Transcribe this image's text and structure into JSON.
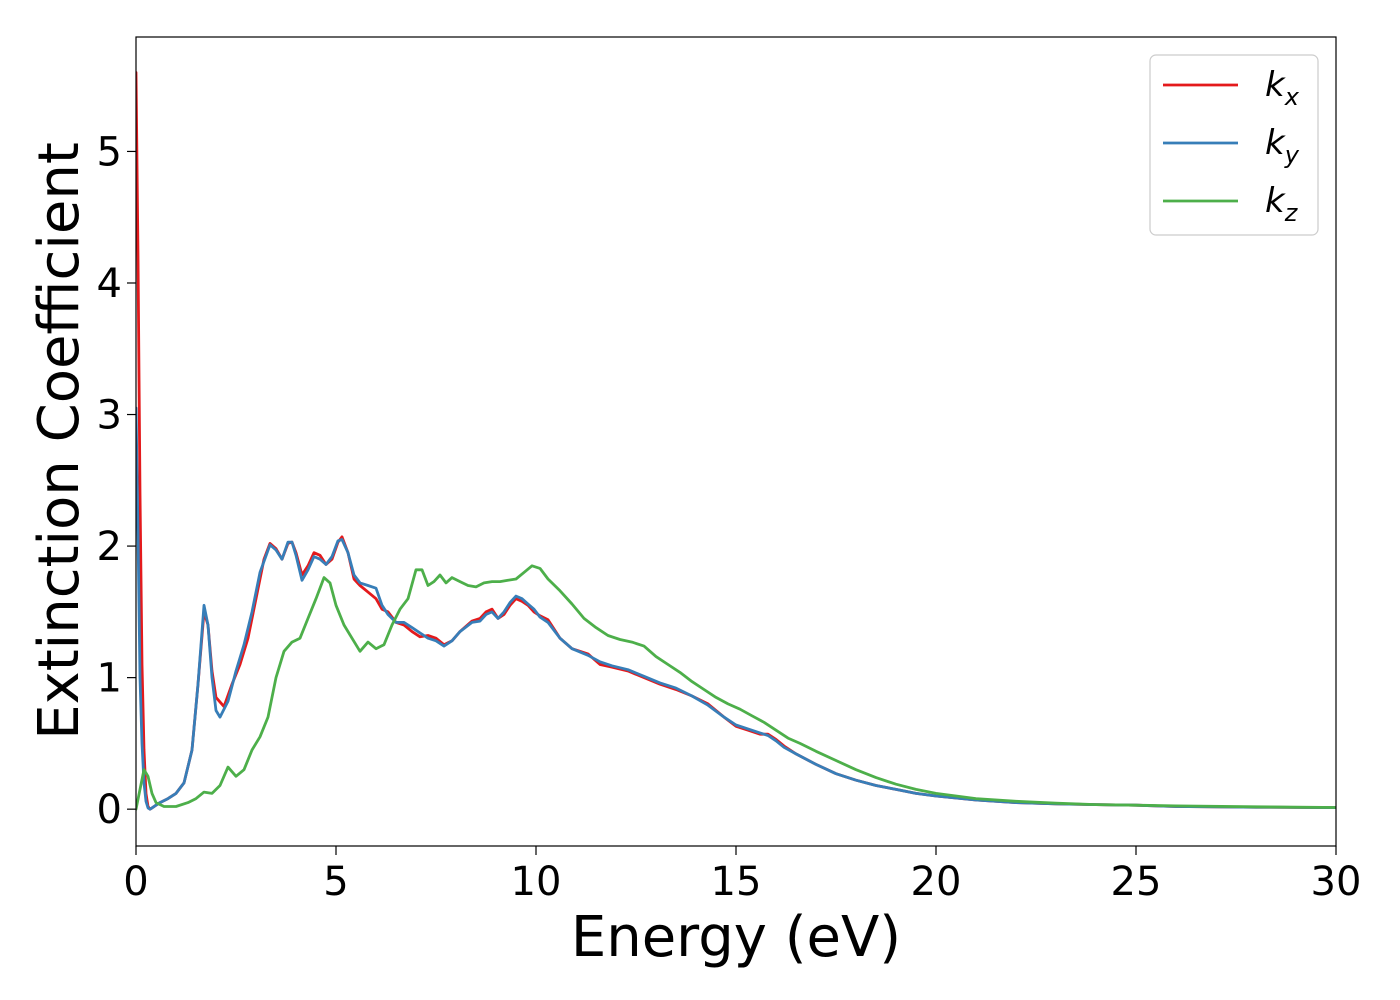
{
  "chart_data": {
    "type": "line",
    "title": "",
    "xlabel": "Energy (eV)",
    "ylabel": "Extinction Coefficient",
    "xlim": [
      0,
      30
    ],
    "ylim": [
      -0.28,
      5.87
    ],
    "xticks": [
      0,
      5,
      10,
      15,
      20,
      25,
      30
    ],
    "yticks": [
      0,
      1,
      2,
      3,
      4,
      5
    ],
    "grid": false,
    "legend_position": "top-right",
    "series": [
      {
        "name": "k_x",
        "legend_main": "k",
        "legend_sub": "x",
        "color": "#e41a1c",
        "x": [
          0.0,
          0.05,
          0.1,
          0.15,
          0.2,
          0.25,
          0.3,
          0.35,
          0.4,
          0.5,
          0.6,
          0.8,
          1.0,
          1.2,
          1.4,
          1.55,
          1.7,
          1.8,
          1.9,
          2.0,
          2.2,
          2.4,
          2.6,
          2.8,
          3.0,
          3.2,
          3.35,
          3.5,
          3.65,
          3.8,
          3.9,
          4.0,
          4.15,
          4.3,
          4.45,
          4.6,
          4.75,
          4.9,
          5.05,
          5.15,
          5.3,
          5.45,
          5.6,
          5.8,
          6.0,
          6.15,
          6.3,
          6.5,
          6.7,
          6.9,
          7.1,
          7.3,
          7.5,
          7.7,
          7.9,
          8.1,
          8.4,
          8.6,
          8.75,
          8.9,
          9.05,
          9.2,
          9.35,
          9.5,
          9.65,
          9.8,
          9.95,
          10.1,
          10.3,
          10.6,
          10.9,
          11.3,
          11.6,
          11.9,
          12.3,
          12.7,
          13.1,
          13.5,
          13.9,
          14.3,
          14.7,
          15.0,
          15.3,
          15.6,
          15.8,
          16.0,
          16.2,
          16.5,
          17.0,
          17.5,
          18.0,
          18.5,
          19.0,
          19.5,
          20.0,
          21.0,
          22.0,
          23.0,
          24.0,
          25.0,
          26.0,
          28.0,
          30.0
        ],
        "y": [
          5.6,
          4.2,
          2.4,
          1.1,
          0.45,
          0.12,
          0.02,
          0.0,
          0.01,
          0.03,
          0.05,
          0.08,
          0.12,
          0.2,
          0.45,
          0.95,
          1.5,
          1.4,
          1.05,
          0.85,
          0.78,
          0.95,
          1.1,
          1.3,
          1.6,
          1.9,
          2.02,
          1.98,
          1.9,
          2.02,
          2.03,
          1.95,
          1.78,
          1.85,
          1.95,
          1.93,
          1.86,
          1.9,
          2.03,
          2.07,
          1.95,
          1.75,
          1.7,
          1.65,
          1.6,
          1.52,
          1.5,
          1.42,
          1.4,
          1.35,
          1.31,
          1.32,
          1.3,
          1.25,
          1.28,
          1.35,
          1.43,
          1.45,
          1.5,
          1.52,
          1.45,
          1.48,
          1.55,
          1.6,
          1.58,
          1.55,
          1.5,
          1.47,
          1.44,
          1.3,
          1.22,
          1.18,
          1.1,
          1.08,
          1.05,
          1.0,
          0.95,
          0.91,
          0.86,
          0.8,
          0.7,
          0.63,
          0.6,
          0.57,
          0.57,
          0.53,
          0.48,
          0.42,
          0.34,
          0.27,
          0.22,
          0.18,
          0.15,
          0.12,
          0.1,
          0.07,
          0.05,
          0.04,
          0.035,
          0.03,
          0.02,
          0.015,
          0.012
        ]
      },
      {
        "name": "k_y",
        "legend_main": "k",
        "legend_sub": "y",
        "color": "#377eb8",
        "x": [
          0.0,
          0.05,
          0.1,
          0.15,
          0.2,
          0.25,
          0.3,
          0.35,
          0.4,
          0.5,
          0.6,
          0.8,
          1.0,
          1.2,
          1.4,
          1.55,
          1.7,
          1.8,
          1.9,
          2.0,
          2.1,
          2.3,
          2.5,
          2.7,
          2.9,
          3.1,
          3.35,
          3.5,
          3.65,
          3.8,
          3.9,
          4.0,
          4.15,
          4.3,
          4.45,
          4.6,
          4.75,
          4.9,
          5.05,
          5.15,
          5.3,
          5.45,
          5.6,
          5.8,
          6.0,
          6.15,
          6.3,
          6.5,
          6.7,
          6.9,
          7.1,
          7.3,
          7.5,
          7.7,
          7.9,
          8.1,
          8.4,
          8.6,
          8.75,
          8.9,
          9.05,
          9.2,
          9.35,
          9.5,
          9.65,
          9.8,
          9.95,
          10.1,
          10.3,
          10.6,
          10.9,
          11.3,
          11.6,
          11.9,
          12.3,
          12.7,
          13.1,
          13.5,
          13.9,
          14.3,
          14.7,
          15.0,
          15.3,
          15.6,
          15.8,
          16.0,
          16.2,
          16.5,
          17.0,
          17.5,
          18.0,
          18.5,
          19.0,
          19.5,
          20.0,
          21.0,
          22.0,
          23.0,
          24.0,
          25.0,
          26.0,
          28.0,
          30.0
        ],
        "y": [
          3.05,
          2.1,
          1.0,
          0.5,
          0.2,
          0.06,
          0.01,
          0.0,
          0.01,
          0.03,
          0.05,
          0.08,
          0.12,
          0.2,
          0.45,
          0.95,
          1.55,
          1.4,
          1.0,
          0.75,
          0.7,
          0.82,
          1.05,
          1.25,
          1.5,
          1.8,
          2.01,
          1.97,
          1.9,
          2.03,
          2.03,
          1.93,
          1.74,
          1.82,
          1.92,
          1.9,
          1.86,
          1.92,
          2.04,
          2.05,
          1.95,
          1.78,
          1.72,
          1.7,
          1.68,
          1.55,
          1.48,
          1.42,
          1.42,
          1.38,
          1.34,
          1.3,
          1.28,
          1.24,
          1.28,
          1.35,
          1.42,
          1.43,
          1.48,
          1.5,
          1.45,
          1.5,
          1.57,
          1.62,
          1.6,
          1.56,
          1.52,
          1.46,
          1.42,
          1.3,
          1.22,
          1.17,
          1.12,
          1.09,
          1.06,
          1.01,
          0.96,
          0.92,
          0.86,
          0.79,
          0.7,
          0.64,
          0.61,
          0.58,
          0.56,
          0.52,
          0.47,
          0.42,
          0.34,
          0.27,
          0.22,
          0.18,
          0.15,
          0.12,
          0.1,
          0.07,
          0.05,
          0.04,
          0.035,
          0.03,
          0.02,
          0.015,
          0.012
        ]
      },
      {
        "name": "k_z",
        "legend_main": "k",
        "legend_sub": "z",
        "color": "#4daf4a",
        "x": [
          0.0,
          0.1,
          0.2,
          0.3,
          0.4,
          0.5,
          0.7,
          1.0,
          1.3,
          1.5,
          1.7,
          1.9,
          2.1,
          2.3,
          2.5,
          2.7,
          2.9,
          3.1,
          3.3,
          3.5,
          3.7,
          3.9,
          4.1,
          4.3,
          4.5,
          4.7,
          4.85,
          5.0,
          5.2,
          5.4,
          5.6,
          5.8,
          6.0,
          6.2,
          6.4,
          6.6,
          6.8,
          7.0,
          7.15,
          7.3,
          7.45,
          7.6,
          7.75,
          7.9,
          8.1,
          8.3,
          8.5,
          8.7,
          8.9,
          9.1,
          9.3,
          9.5,
          9.7,
          9.9,
          10.1,
          10.3,
          10.6,
          10.9,
          11.2,
          11.5,
          11.8,
          12.1,
          12.4,
          12.7,
          13.0,
          13.3,
          13.6,
          13.9,
          14.2,
          14.5,
          14.8,
          15.1,
          15.4,
          15.7,
          16.0,
          16.3,
          16.6,
          17.0,
          17.5,
          18.0,
          18.5,
          19.0,
          19.5,
          20.0,
          21.0,
          22.0,
          23.0,
          24.0,
          25.0,
          26.0,
          28.0,
          30.0
        ],
        "y": [
          0.0,
          0.15,
          0.3,
          0.25,
          0.12,
          0.05,
          0.02,
          0.02,
          0.05,
          0.08,
          0.13,
          0.12,
          0.18,
          0.32,
          0.25,
          0.3,
          0.45,
          0.55,
          0.7,
          1.0,
          1.2,
          1.27,
          1.3,
          1.45,
          1.6,
          1.76,
          1.72,
          1.55,
          1.4,
          1.3,
          1.2,
          1.27,
          1.22,
          1.25,
          1.4,
          1.52,
          1.6,
          1.82,
          1.82,
          1.7,
          1.73,
          1.78,
          1.72,
          1.76,
          1.73,
          1.7,
          1.69,
          1.72,
          1.73,
          1.73,
          1.74,
          1.75,
          1.8,
          1.85,
          1.83,
          1.75,
          1.66,
          1.56,
          1.45,
          1.38,
          1.32,
          1.29,
          1.27,
          1.24,
          1.16,
          1.1,
          1.04,
          0.97,
          0.91,
          0.85,
          0.8,
          0.76,
          0.71,
          0.66,
          0.6,
          0.54,
          0.5,
          0.44,
          0.37,
          0.3,
          0.24,
          0.19,
          0.15,
          0.12,
          0.08,
          0.06,
          0.045,
          0.035,
          0.03,
          0.025,
          0.018,
          0.013
        ]
      }
    ]
  }
}
